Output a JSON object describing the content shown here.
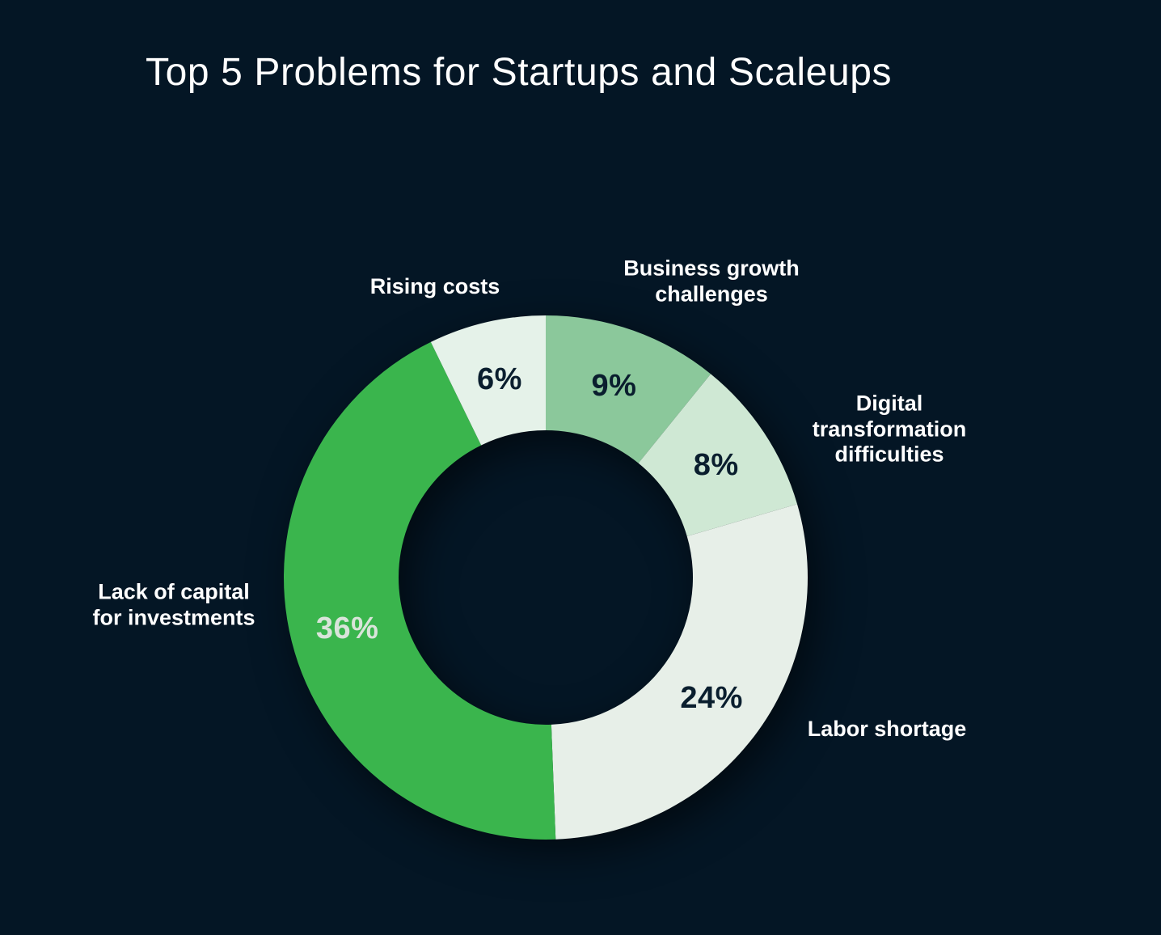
{
  "page": {
    "background_color": "#041625",
    "category_label_color": "#ffffff"
  },
  "title": {
    "text": "Top 5 Problems for Startups and Scaleups",
    "color": "#ffffff"
  },
  "chart_data": {
    "type": "pie",
    "subtype": "donut",
    "title": "Top 5 Problems for Startups and Scaleups",
    "unit": "%",
    "start_angle_deg_from_top": 0,
    "direction": "clockwise",
    "legend_position": "labels-around-chart",
    "slices": [
      {
        "label": "Business growth challenges",
        "value": 9,
        "value_label": "9%",
        "color": "#8bc89b",
        "value_label_color": "#0a1e2e"
      },
      {
        "label": "Digital transformation difficulties",
        "value": 8,
        "value_label": "8%",
        "color": "#cfe8d4",
        "value_label_color": "#0a1e2e"
      },
      {
        "label": "Labor shortage",
        "value": 24,
        "value_label": "24%",
        "color": "#e7efe8",
        "value_label_color": "#0a1e2e"
      },
      {
        "label": "Lack of capital for investments",
        "value": 36,
        "value_label": "36%",
        "color": "#3ab54d",
        "value_label_color": "#d9e4da"
      },
      {
        "label": "Rising costs",
        "value": 6,
        "value_label": "6%",
        "color": "#e5f2e9",
        "value_label_color": "#0a1e2e"
      }
    ]
  }
}
